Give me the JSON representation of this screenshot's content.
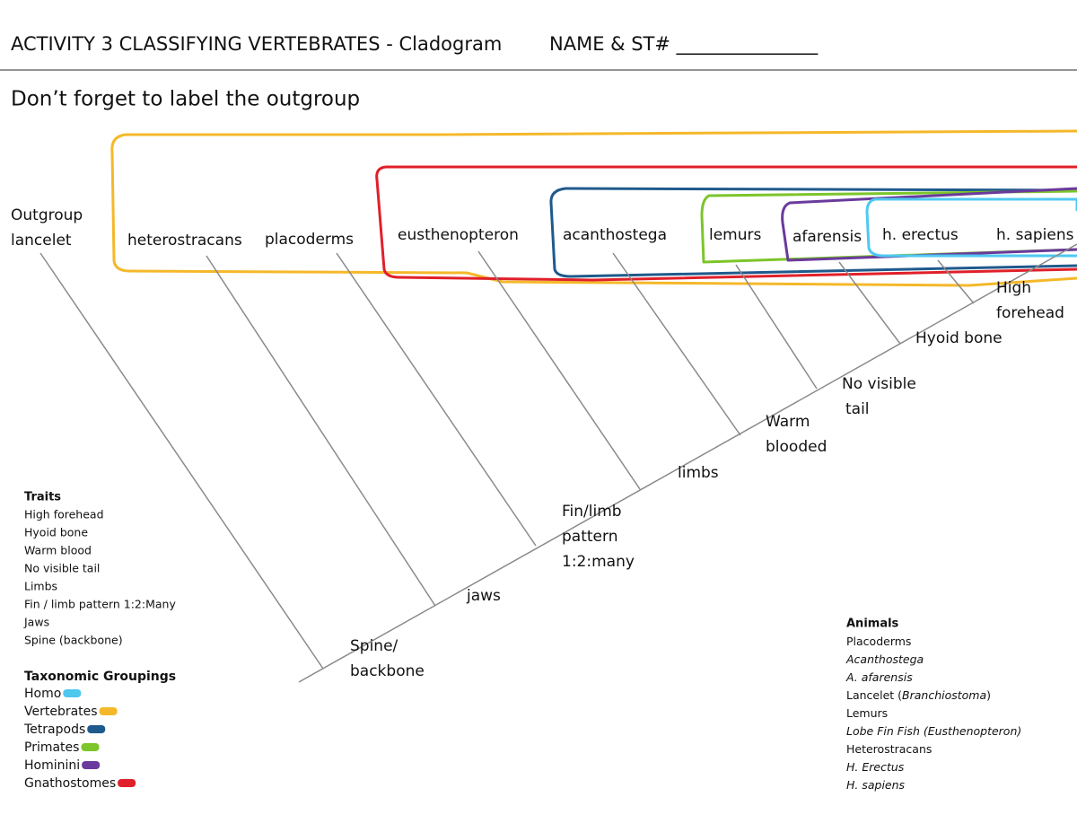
{
  "header": {
    "title": "ACTIVITY 3 CLASSIFYING VERTEBRATES - Cladogram",
    "name_field": "NAME & ST# _______________"
  },
  "instruction": "Don’t forget to label the outgroup",
  "cladogram": {
    "outgroup": [
      "Outgroup",
      "lancelet"
    ],
    "taxa": [
      "heterostracans",
      "placoderms",
      "eusthenopteron",
      "acanthostega",
      "lemurs",
      "afarensis",
      "h. erectus",
      "h. sapiens"
    ],
    "traits": [
      [
        "Spine/",
        "backbone"
      ],
      [
        "jaws"
      ],
      [
        "Fin/limb",
        "pattern",
        "1:2:many"
      ],
      [
        "limbs"
      ],
      [
        "Warm",
        "blooded"
      ],
      [
        "No visible",
        "tail"
      ],
      [
        "Hyoid bone"
      ],
      [
        "High",
        "forehead"
      ]
    ]
  },
  "traits_key": {
    "title": "Traits",
    "items": [
      "High forehead",
      "Hyoid bone",
      "Warm blood",
      "No visible tail",
      "Limbs",
      "Fin / limb pattern 1:2:Many",
      "Jaws",
      "Spine (backbone)"
    ]
  },
  "groupings_key": {
    "title": "Taxonomic Groupings",
    "items": [
      {
        "name": "Homo",
        "color": "#4fc8f0"
      },
      {
        "name": "Vertebrates",
        "color": "#f5b82a"
      },
      {
        "name": "Tetrapods",
        "color": "#1f5a8c"
      },
      {
        "name": "Primates",
        "color": "#7cc52a"
      },
      {
        "name": "Hominini",
        "color": "#6a3a9c"
      },
      {
        "name": "Gnathostomes",
        "color": "#e0202a"
      }
    ]
  },
  "animals_key": {
    "title": "Animals",
    "items": [
      [
        {
          "text": "Placoderms",
          "italic": false
        }
      ],
      [
        {
          "text": "Acanthostega",
          "italic": true
        }
      ],
      [
        {
          "text": "A. afarensis",
          "italic": true
        }
      ],
      [
        {
          "text": "Lancelet (",
          "italic": false
        },
        {
          "text": "Branchiostoma",
          "italic": true
        },
        {
          "text": ")",
          "italic": false
        }
      ],
      [
        {
          "text": "Lemurs",
          "italic": false
        }
      ],
      [
        {
          "text": "Lobe Fin Fish (Eusthenopteron)",
          "italic": true
        }
      ],
      [
        {
          "text": "Heterostracans",
          "italic": false
        }
      ],
      [
        {
          "text": "H. Erectus",
          "italic": true
        }
      ],
      [
        {
          "text": "H. sapiens",
          "italic": true
        }
      ]
    ]
  }
}
